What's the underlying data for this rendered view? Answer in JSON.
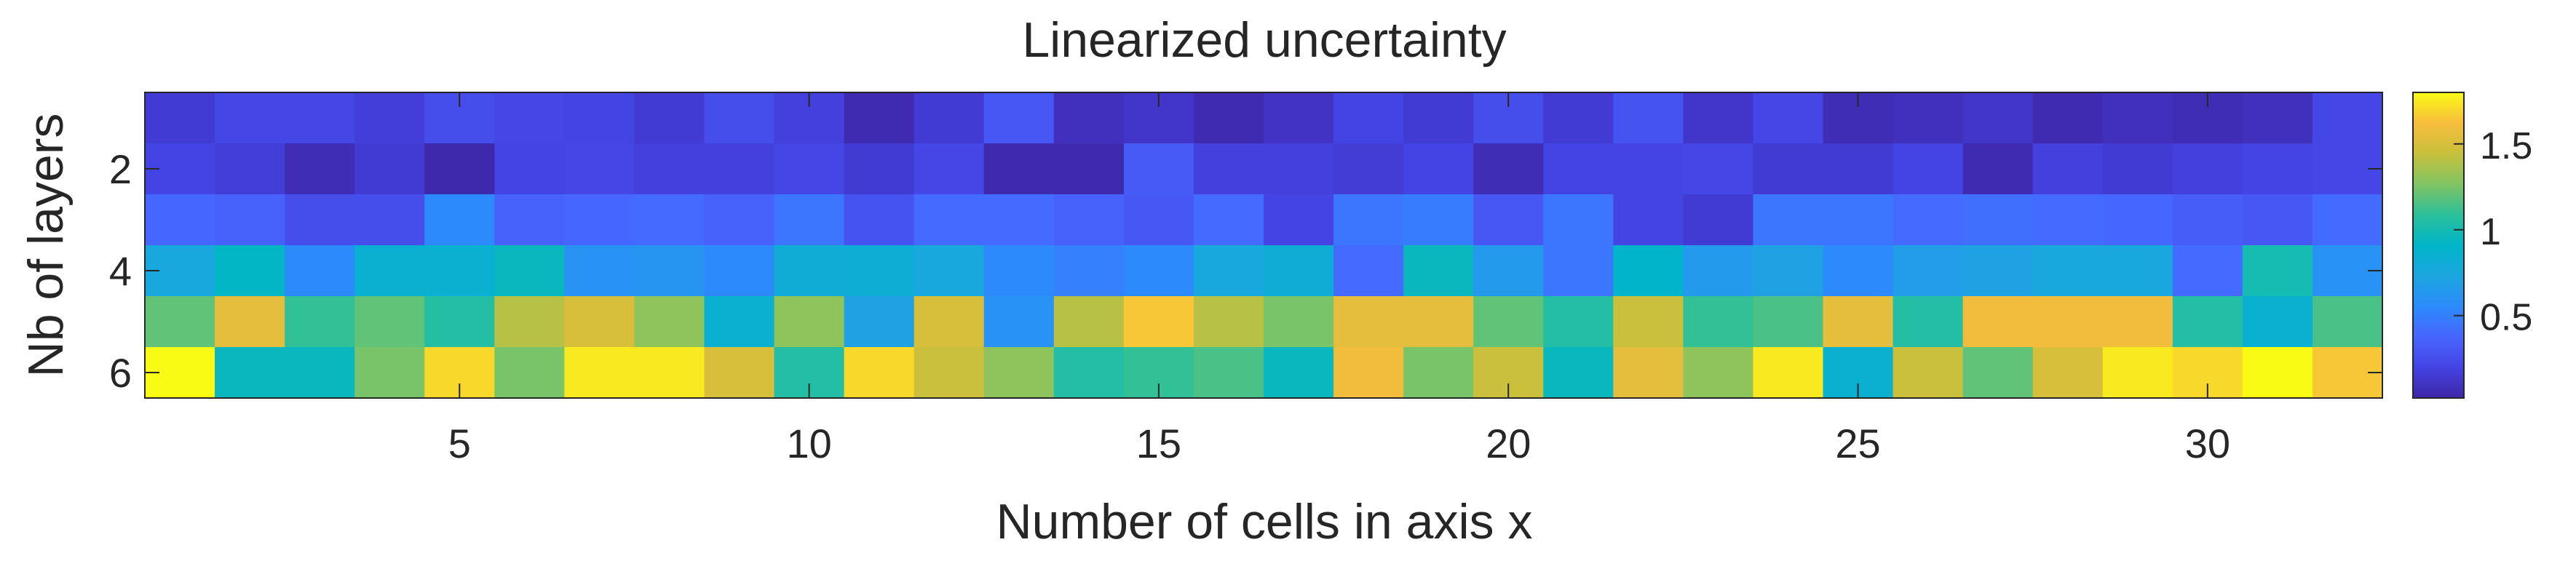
{
  "chart_data": {
    "type": "heatmap",
    "title": "Linearized uncertainty",
    "xlabel": "Number of cells in axis x",
    "ylabel": "Nb of layers",
    "x": [
      1,
      2,
      3,
      4,
      5,
      6,
      7,
      8,
      9,
      10,
      11,
      12,
      13,
      14,
      15,
      16,
      17,
      18,
      19,
      20,
      21,
      22,
      23,
      24,
      25,
      26,
      27,
      28,
      29,
      30,
      31,
      32
    ],
    "y": [
      1,
      2,
      3,
      4,
      5,
      6
    ],
    "xlim": [
      0.5,
      32.5
    ],
    "ylim": [
      0.5,
      6.5
    ],
    "y_direction": "reverse",
    "xticks": [
      5,
      10,
      15,
      20,
      25,
      30
    ],
    "xtick_labels": [
      "5",
      "10",
      "15",
      "20",
      "25",
      "30"
    ],
    "yticks": [
      2,
      4,
      6
    ],
    "ytick_labels": [
      "2",
      "4",
      "6"
    ],
    "colormap": "parula",
    "clim": [
      0.02,
      1.8
    ],
    "colorbar": {
      "ticks": [
        0.5,
        1,
        1.5
      ],
      "tick_labels": [
        "0.5",
        "1",
        "1.5"
      ]
    },
    "values": [
      [
        0.15,
        0.22,
        0.22,
        0.17,
        0.25,
        0.22,
        0.2,
        0.15,
        0.25,
        0.18,
        0.05,
        0.15,
        0.3,
        0.08,
        0.12,
        0.05,
        0.1,
        0.2,
        0.15,
        0.25,
        0.15,
        0.28,
        0.12,
        0.22,
        0.06,
        0.08,
        0.12,
        0.05,
        0.08,
        0.06,
        0.08,
        0.22
      ],
      [
        0.2,
        0.17,
        0.06,
        0.15,
        0.03,
        0.2,
        0.22,
        0.18,
        0.18,
        0.22,
        0.15,
        0.22,
        0.04,
        0.04,
        0.32,
        0.18,
        0.18,
        0.16,
        0.2,
        0.06,
        0.2,
        0.2,
        0.22,
        0.15,
        0.15,
        0.2,
        0.05,
        0.18,
        0.15,
        0.18,
        0.2,
        0.22
      ],
      [
        0.38,
        0.35,
        0.25,
        0.25,
        0.55,
        0.35,
        0.38,
        0.4,
        0.35,
        0.45,
        0.28,
        0.4,
        0.4,
        0.35,
        0.3,
        0.4,
        0.2,
        0.45,
        0.48,
        0.3,
        0.45,
        0.2,
        0.15,
        0.45,
        0.45,
        0.4,
        0.42,
        0.4,
        0.38,
        0.33,
        0.3,
        0.4
      ],
      [
        0.75,
        0.92,
        0.55,
        0.85,
        0.85,
        0.95,
        0.6,
        0.62,
        0.55,
        0.8,
        0.82,
        0.75,
        0.55,
        0.5,
        0.55,
        0.75,
        0.8,
        0.4,
        0.95,
        0.65,
        0.45,
        0.9,
        0.65,
        0.7,
        0.55,
        0.68,
        0.7,
        0.75,
        0.75,
        0.4,
        1.0,
        0.6
      ],
      [
        1.2,
        1.55,
        1.1,
        1.2,
        1.05,
        1.4,
        1.5,
        1.3,
        0.85,
        1.3,
        0.7,
        1.5,
        0.6,
        1.4,
        1.65,
        1.4,
        1.25,
        1.55,
        1.55,
        1.2,
        1.05,
        1.45,
        1.1,
        1.15,
        1.55,
        1.05,
        1.6,
        1.6,
        1.6,
        1.05,
        0.85,
        1.15
      ],
      [
        1.8,
        0.95,
        0.95,
        1.25,
        1.7,
        1.25,
        1.75,
        1.75,
        1.5,
        1.05,
        1.7,
        1.45,
        1.3,
        1.05,
        1.1,
        1.15,
        0.95,
        1.6,
        1.25,
        1.45,
        0.95,
        1.55,
        1.3,
        1.75,
        0.85,
        1.45,
        1.2,
        1.5,
        1.75,
        1.7,
        1.8,
        1.65
      ]
    ]
  }
}
